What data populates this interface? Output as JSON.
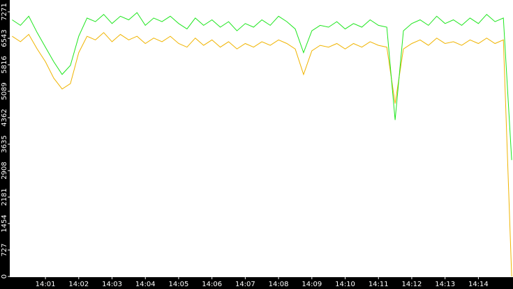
{
  "chart_data": {
    "type": "line",
    "x": [
      840,
      840.25,
      840.5,
      840.75,
      841,
      841.25,
      841.5,
      841.75,
      842,
      842.25,
      842.5,
      842.75,
      843,
      843.25,
      843.5,
      843.75,
      844,
      844.25,
      844.5,
      844.75,
      845,
      845.25,
      845.5,
      845.75,
      846,
      846.25,
      846.5,
      846.75,
      847,
      847.25,
      847.5,
      847.75,
      848,
      848.25,
      848.5,
      848.75,
      849,
      849.25,
      849.5,
      849.75,
      850,
      850.25,
      850.5,
      850.75,
      851,
      851.25,
      851.5,
      851.75,
      852,
      852.25,
      852.5,
      852.75,
      853,
      853.25,
      853.5,
      853.75,
      854,
      854.25,
      854.5,
      854.75,
      855
    ],
    "series": [
      {
        "color": "#f0b400",
        "values": [
          6600,
          6450,
          6650,
          6250,
          5900,
          5450,
          5150,
          5300,
          6150,
          6600,
          6500,
          6700,
          6450,
          6650,
          6500,
          6600,
          6400,
          6550,
          6450,
          6600,
          6400,
          6300,
          6550,
          6350,
          6500,
          6300,
          6450,
          6250,
          6400,
          6300,
          6450,
          6350,
          6500,
          6400,
          6250,
          5550,
          6200,
          6350,
          6300,
          6400,
          6250,
          6400,
          6300,
          6450,
          6350,
          6300,
          4750,
          6250,
          6400,
          6500,
          6350,
          6550,
          6400,
          6450,
          6350,
          6500,
          6400,
          6550,
          6400,
          6500,
          0
        ]
      },
      {
        "color": "#1ee61e",
        "values": [
          7050,
          6900,
          7150,
          6700,
          6300,
          5900,
          5550,
          5800,
          6600,
          7100,
          7000,
          7200,
          6950,
          7150,
          7050,
          7250,
          6900,
          7100,
          7000,
          7150,
          6950,
          6800,
          7100,
          6900,
          7050,
          6850,
          7000,
          6750,
          6950,
          6850,
          7050,
          6900,
          7150,
          7000,
          6800,
          6150,
          6750,
          6900,
          6850,
          7000,
          6800,
          6950,
          6850,
          7050,
          6900,
          6850,
          4300,
          6750,
          6950,
          7050,
          6900,
          7150,
          6950,
          7050,
          6900,
          7100,
          6950,
          7200,
          7000,
          7100,
          3200
        ]
      }
    ],
    "xlim": [
      839.95,
      855.04
    ],
    "xticks": [
      {
        "value": 841,
        "label": "14:01"
      },
      {
        "value": 842,
        "label": "14:02"
      },
      {
        "value": 843,
        "label": "14:03"
      },
      {
        "value": 844,
        "label": "14:04"
      },
      {
        "value": 845,
        "label": "14:05"
      },
      {
        "value": 846,
        "label": "14:06"
      },
      {
        "value": 847,
        "label": "14:07"
      },
      {
        "value": 848,
        "label": "14:08"
      },
      {
        "value": 849,
        "label": "14:09"
      },
      {
        "value": 850,
        "label": "14:10"
      },
      {
        "value": 851,
        "label": "14:11"
      },
      {
        "value": 852,
        "label": "14:12"
      },
      {
        "value": 853,
        "label": "14:13"
      },
      {
        "value": 854,
        "label": "14:14"
      }
    ],
    "ylim": [
      0,
      7596
    ],
    "yticks": [
      0,
      727,
      1454,
      2181,
      2908,
      3635,
      4362,
      5089,
      5816,
      6543,
      7271
    ]
  }
}
